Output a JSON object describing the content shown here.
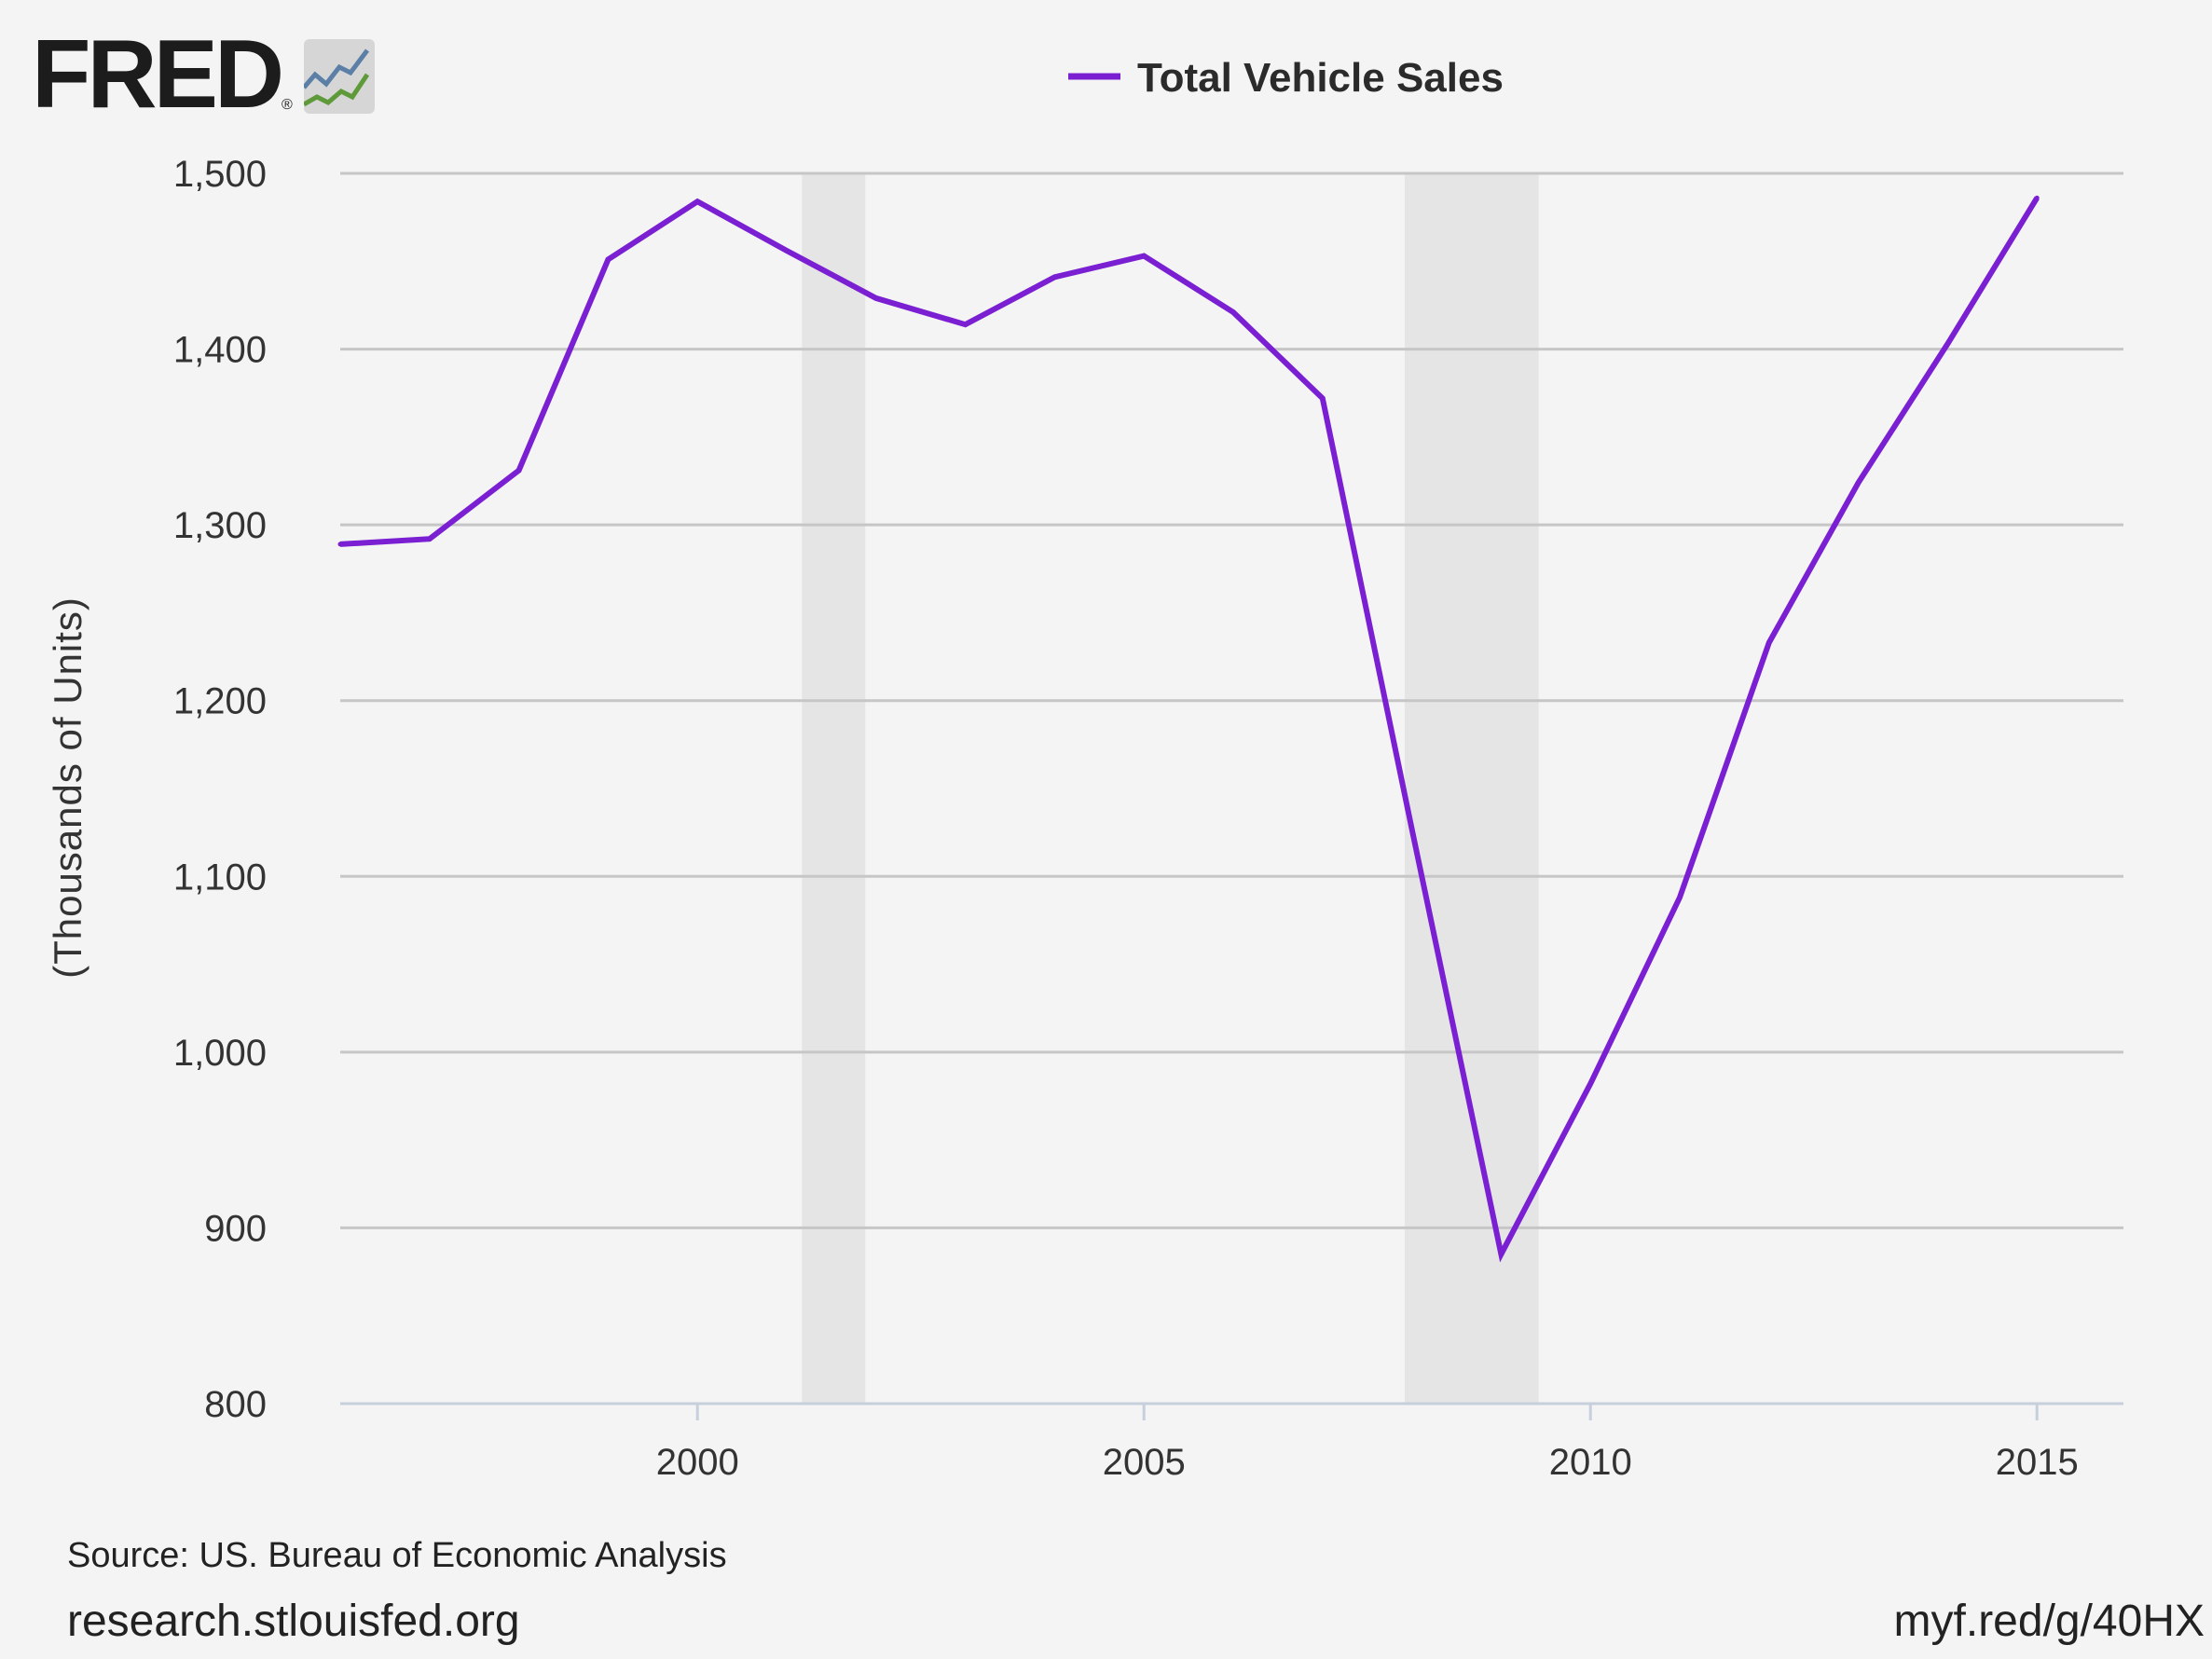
{
  "logo": {
    "text": "FRED",
    "reg": "®"
  },
  "legend": {
    "label": "Total Vehicle Sales"
  },
  "footer": {
    "source": "Source: US. Bureau of Economic Analysis",
    "site": "research.stlouisfed.org",
    "short_url": "myf.red/g/40HX"
  },
  "colors": {
    "series": "#7a1fd2",
    "recession": "#e5e5e5",
    "grid": "#c6c6c6",
    "background": "#f4f4f4"
  },
  "chart_data": {
    "type": "line",
    "ylabel": "(Thousands of Units)",
    "xlim": [
      1996,
      2016
    ],
    "ylim": [
      800,
      1500
    ],
    "y_ticks": [
      800,
      900,
      1000,
      1100,
      1200,
      1300,
      1400,
      1500
    ],
    "y_tick_labels": [
      "800",
      "900",
      "1,000",
      "1,100",
      "1,200",
      "1,300",
      "1,400",
      "1,500"
    ],
    "x_ticks": [
      2000,
      2005,
      2010,
      2015
    ],
    "x_tick_labels": [
      "2000",
      "2005",
      "2010",
      "2015"
    ],
    "grid": true,
    "legend_position": "top-center",
    "recessions": [
      {
        "start": 2001.17,
        "end": 2001.88
      },
      {
        "start": 2007.92,
        "end": 2009.42
      }
    ],
    "series": [
      {
        "name": "Total Vehicle Sales",
        "x": [
          1996,
          1997,
          1998,
          1999,
          2000,
          2001,
          2002,
          2003,
          2004,
          2005,
          2006,
          2007,
          2008,
          2009,
          2010,
          2011,
          2012,
          2013,
          2014,
          2015
        ],
        "values": [
          1289,
          1292,
          1331,
          1451,
          1484,
          1456,
          1429,
          1414,
          1441,
          1453,
          1421,
          1372,
          1127,
          885,
          982,
          1088,
          1233,
          1324,
          1403,
          1486
        ]
      }
    ]
  }
}
